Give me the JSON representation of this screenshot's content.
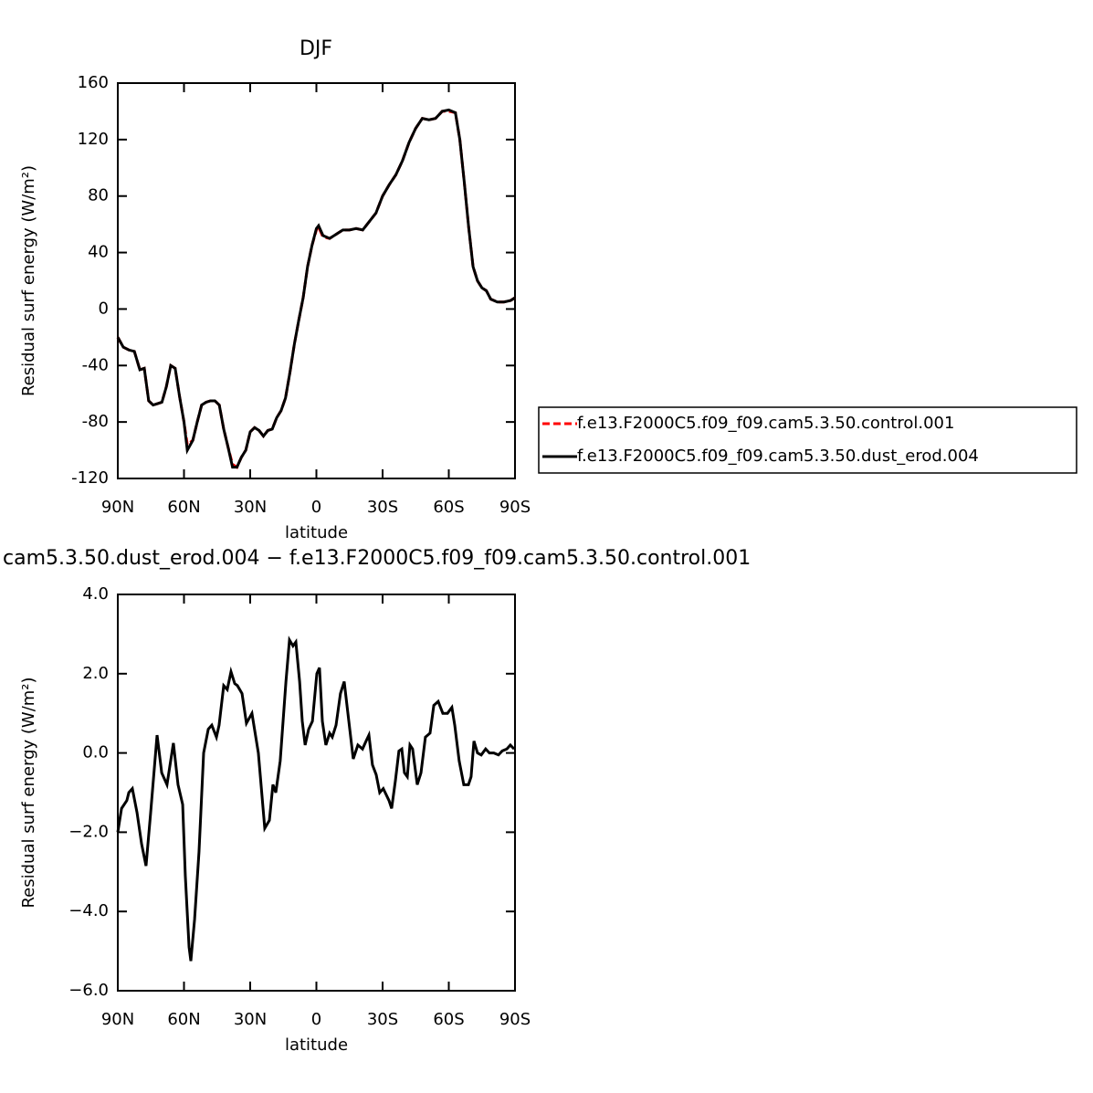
{
  "chart_data": [
    {
      "type": "line",
      "title": "DJF",
      "xlabel": "latitude",
      "ylabel": "Residual surf energy (W/m²)",
      "xlim": [
        90,
        -90
      ],
      "ylim": [
        -120,
        160
      ],
      "xticks": [
        {
          "value": 90,
          "label": "90N"
        },
        {
          "value": 60,
          "label": "60N"
        },
        {
          "value": 30,
          "label": "30N"
        },
        0,
        {
          "value": -30,
          "label": "30S"
        },
        {
          "value": -60,
          "label": "60S"
        },
        {
          "value": -90,
          "label": "90S"
        }
      ],
      "yticks": [
        -120,
        -80,
        -40,
        0,
        40,
        80,
        120,
        160
      ],
      "legend": "outside-right",
      "x": [
        90,
        87.5,
        85,
        82.5,
        80,
        78,
        76,
        74,
        72,
        70,
        68,
        66,
        64,
        62,
        60,
        58.5,
        56,
        54,
        52,
        50,
        48,
        46,
        44,
        42,
        40,
        38,
        36,
        34,
        32,
        30,
        28,
        26,
        24,
        22,
        20,
        18,
        16,
        14,
        12,
        10,
        8,
        6,
        4,
        2,
        0,
        -1,
        -3,
        -6,
        -9,
        -12,
        -15,
        -18,
        -21,
        -24,
        -27,
        -30,
        -33,
        -36,
        -39,
        -42,
        -45,
        -48,
        -51,
        -54,
        -57,
        -60,
        -63,
        -65,
        -67,
        -69,
        -71,
        -73,
        -75,
        -77,
        -79,
        -82,
        -85,
        -88,
        -90
      ],
      "series": [
        {
          "name": "f.e13.F2000C5.f09_f09.cam5.3.50.control.001",
          "color": "#ff0000",
          "dash": "dashed",
          "values": [
            -20,
            -27,
            -29,
            -30,
            -43,
            -42,
            -65,
            -68,
            -67,
            -66,
            -55,
            -40,
            -42,
            -62,
            -80,
            -96,
            -93,
            -80,
            -68,
            -66,
            -65,
            -65,
            -68,
            -85,
            -98,
            -110,
            -112,
            -105,
            -100,
            -87,
            -84,
            -86,
            -90,
            -86,
            -85,
            -77,
            -72,
            -63,
            -45,
            -25,
            -8,
            8,
            30,
            45,
            56,
            58,
            51,
            50,
            53,
            56,
            56,
            57,
            56,
            62,
            68,
            80,
            88,
            95,
            105,
            118,
            128,
            135,
            134,
            135,
            140,
            140,
            139,
            120,
            90,
            58,
            30,
            20,
            15,
            13,
            7,
            5,
            5,
            6,
            8
          ]
        },
        {
          "name": "f.e13.F2000C5.f09_f09.cam5.3.50.dust_erod.004",
          "color": "#000000",
          "dash": "solid",
          "values": [
            -20,
            -27,
            -29,
            -30,
            -43,
            -42,
            -65,
            -68,
            -67,
            -66,
            -55,
            -40,
            -42,
            -62,
            -80,
            -100,
            -93,
            -80,
            -68,
            -66,
            -65,
            -65,
            -68,
            -85,
            -98,
            -112,
            -112,
            -105,
            -100,
            -87,
            -84,
            -86,
            -90,
            -86,
            -85,
            -77,
            -72,
            -63,
            -45,
            -25,
            -8,
            8,
            30,
            45,
            57,
            59,
            52,
            50,
            53,
            56,
            56,
            57,
            56,
            62,
            68,
            80,
            88,
            95,
            105,
            118,
            128,
            135,
            134,
            135,
            140,
            141,
            139,
            120,
            90,
            58,
            30,
            20,
            15,
            13,
            7,
            5,
            5,
            6,
            8
          ]
        }
      ]
    },
    {
      "type": "line",
      "title": "cam5.3.50.dust_erod.004 − f.e13.F2000C5.f09_f09.cam5.3.50.control.001",
      "xlabel": "latitude",
      "ylabel": "Residual surf energy (W/m²)",
      "xlim": [
        90,
        -90
      ],
      "ylim": [
        -6,
        4
      ],
      "xticks": [
        {
          "value": 90,
          "label": "90N"
        },
        {
          "value": 60,
          "label": "60N"
        },
        {
          "value": 30,
          "label": "30N"
        },
        0,
        {
          "value": -30,
          "label": "30S"
        },
        {
          "value": -60,
          "label": "60S"
        },
        {
          "value": -90,
          "label": "90S"
        }
      ],
      "yticks": [
        {
          "value": -6,
          "label": "−6.0"
        },
        {
          "value": -4,
          "label": "−4.0"
        },
        {
          "value": -2,
          "label": "−2.0"
        },
        {
          "value": 0,
          "label": "0.0"
        },
        {
          "value": 2,
          "label": "2.0"
        },
        {
          "value": 4,
          "label": "4.0"
        }
      ],
      "x": [
        90,
        88.3,
        85.9,
        85,
        83.4,
        81.3,
        79.2,
        77.2,
        75.1,
        72.2,
        70.1,
        67.7,
        64.8,
        62.7,
        60.6,
        59.4,
        57.7,
        56.9,
        55.2,
        53.2,
        51.1,
        49,
        47.4,
        45.3,
        44.1,
        42,
        40.4,
        38.7,
        37,
        35.8,
        33.7,
        31.7,
        29.2,
        26.3,
        23.4,
        21.3,
        19.7,
        18.4,
        16.4,
        13.8,
        12.2,
        10.6,
        9.3,
        7.6,
        6.4,
        5.1,
        3.5,
        1.8,
        -0.2,
        -1.4,
        -2.7,
        -4.3,
        -6,
        -7.2,
        -8.9,
        -10.9,
        -12.6,
        -14.7,
        -16.7,
        -18.8,
        -20.9,
        -22.5,
        -23.8,
        -25.4,
        -27.1,
        -28.7,
        -30.3,
        -32.9,
        -34.1,
        -35.8,
        -37.4,
        -38.7,
        -39.9,
        -41.2,
        -42.4,
        -43.6,
        -45.7,
        -47.4,
        -49.4,
        -51.5,
        -53.2,
        -55.2,
        -57.3,
        -59.4,
        -61.4,
        -62.7,
        -64.7,
        -66.8,
        -68.9,
        -70.1,
        -71.4,
        -73,
        -74.7,
        -76.7,
        -78.4,
        -80.4,
        -82.5,
        -84.2,
        -86.3,
        -87.9,
        -89.6
      ],
      "series": [
        {
          "color": "#000000",
          "dash": "solid",
          "values": [
            -2.0,
            -1.4,
            -1.2,
            -1.0,
            -0.9,
            -1.5,
            -2.3,
            -2.85,
            -1.5,
            0.45,
            -0.5,
            -0.8,
            0.25,
            -0.8,
            -1.3,
            -3.1,
            -4.9,
            -5.25,
            -4.2,
            -2.5,
            0.0,
            0.6,
            0.7,
            0.4,
            0.7,
            1.7,
            1.6,
            2.05,
            1.75,
            1.7,
            1.5,
            0.75,
            1.0,
            0.0,
            -1.9,
            -1.7,
            -0.8,
            -1.0,
            -0.2,
            1.8,
            2.85,
            2.7,
            2.8,
            1.8,
            0.8,
            0.2,
            0.6,
            0.8,
            2.0,
            2.15,
            0.8,
            0.2,
            0.5,
            0.4,
            0.7,
            1.5,
            1.8,
            0.8,
            -0.15,
            0.2,
            0.1,
            0.3,
            0.45,
            -0.3,
            -0.55,
            -1.0,
            -0.9,
            -1.2,
            -1.4,
            -0.7,
            0.05,
            0.1,
            -0.5,
            -0.6,
            0.2,
            0.1,
            -0.8,
            -0.5,
            0.4,
            0.5,
            1.2,
            1.3,
            1.0,
            1.0,
            1.15,
            0.7,
            -0.2,
            -0.8,
            -0.8,
            -0.6,
            0.3,
            0.0,
            -0.05,
            0.1,
            0.0,
            0.0,
            -0.05,
            0.05,
            0.1,
            0.2,
            0.1
          ]
        }
      ]
    }
  ]
}
